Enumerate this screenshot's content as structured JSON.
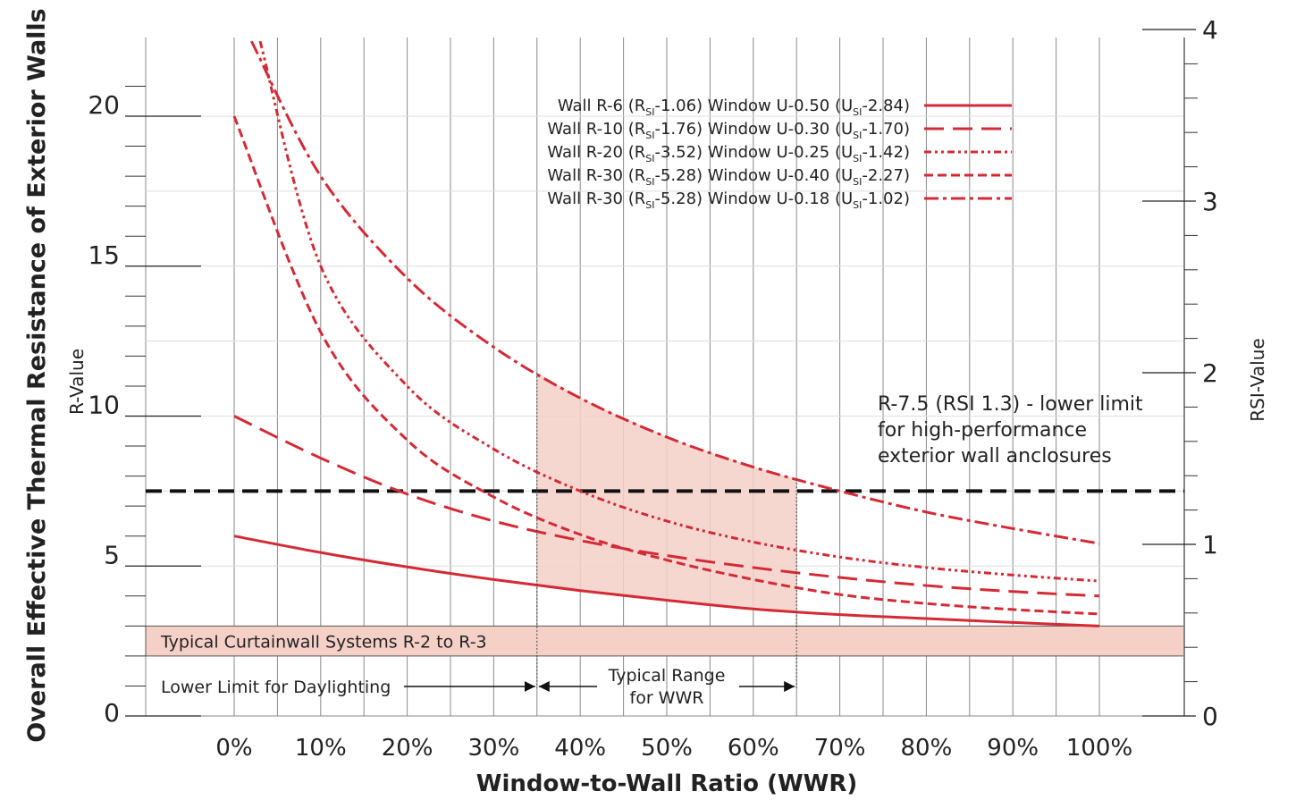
{
  "chart_data": {
    "type": "line",
    "title": "",
    "xlabel": "Window-to-Wall Ratio (WWR)",
    "ylabel": "Overall Effective Thermal Resistance of Exterior Walls",
    "ylabel_left_sub": "R-Value",
    "ylabel_right": "RSI-Value",
    "x_ticks": [
      "0%",
      "10%",
      "20%",
      "30%",
      "40%",
      "50%",
      "60%",
      "70%",
      "80%",
      "90%",
      "100%"
    ],
    "y_ticks": [
      "0",
      "5",
      "10",
      "15",
      "20"
    ],
    "y2_ticks": [
      "0",
      "1",
      "2",
      "3",
      "4"
    ],
    "xlim": [
      0,
      100
    ],
    "ylim": [
      0,
      22.7
    ],
    "y2lim": [
      0,
      4
    ],
    "grid": true,
    "legend_position": "top-center",
    "series": [
      {
        "name": "Wall R-6 (RSI-1.06) Window U-0.50 (USI-2.84)",
        "legend_parts": [
          "Wall R-6   (R",
          "SI",
          "-1.06) Window U-0.50 (U",
          "SI",
          "-2.84)"
        ],
        "style": "solid",
        "x": [
          0,
          10,
          20,
          30,
          40,
          50,
          60,
          70,
          80,
          90,
          100
        ],
        "y": [
          6.0,
          5.45,
          4.97,
          4.55,
          4.18,
          3.86,
          3.57,
          3.38,
          3.25,
          3.12,
          3.0
        ]
      },
      {
        "name": "Wall R-10 (RSI-1.76) Window U-0.30 (USI-1.70)",
        "legend_parts": [
          "Wall R-10 (R",
          "SI",
          "-1.76) Window U-0.30 (U",
          "SI",
          "-1.70)"
        ],
        "style": "long-dash",
        "x": [
          0,
          10,
          20,
          30,
          40,
          50,
          60,
          70,
          80,
          90,
          100
        ],
        "y": [
          10.0,
          8.6,
          7.4,
          6.5,
          5.85,
          5.35,
          4.95,
          4.62,
          4.35,
          4.15,
          4.0
        ]
      },
      {
        "name": "Wall R-20 (RSI-3.52) Window U-0.25 (USI-1.42)",
        "legend_parts": [
          "Wall R-20 (R",
          "SI",
          "-3.52) Window U-0.25 (U",
          "SI",
          "-1.42)"
        ],
        "style": "dash-dot-dot",
        "x": [
          3,
          10,
          20,
          30,
          40,
          50,
          60,
          70,
          80,
          90,
          100
        ],
        "y": [
          22.5,
          15.0,
          11.0,
          8.9,
          7.5,
          6.5,
          5.8,
          5.3,
          4.95,
          4.7,
          4.5
        ]
      },
      {
        "name": "Wall R-30 (RSI-5.28) Window U-0.40 (USI-2.27)",
        "legend_parts": [
          "Wall R-30 (R",
          "SI",
          "-5.28) Window U-0.40 (U",
          "SI",
          "-2.27)"
        ],
        "style": "short-dash",
        "x": [
          0,
          10,
          20,
          30,
          40,
          50,
          60,
          70,
          80,
          90,
          100
        ],
        "y": [
          20.0,
          12.8,
          9.2,
          7.3,
          6.05,
          5.2,
          4.55,
          4.05,
          3.75,
          3.55,
          3.4
        ]
      },
      {
        "name": "Wall R-30 (RSI-5.28) Window U-0.18 (USI-1.02)",
        "legend_parts": [
          "Wall R-30 (R",
          "SI",
          "-5.28) Window U-0.18 (U",
          "SI",
          "-1.02)"
        ],
        "style": "dash-dot",
        "x": [
          2,
          10,
          20,
          30,
          40,
          50,
          60,
          70,
          80,
          90,
          100
        ],
        "y": [
          22.5,
          18.0,
          14.6,
          12.3,
          10.6,
          9.3,
          8.3,
          7.5,
          6.8,
          6.25,
          5.75
        ]
      }
    ],
    "reference_line": {
      "y": 7.5,
      "style": "dashed",
      "color": "#111111",
      "label": [
        "R-7.5 (RSI 1.3) - lower limit",
        "for high-performance",
        "exterior wall anclosures"
      ]
    },
    "band": {
      "y_from": 2,
      "y_to": 3,
      "color": "#f5d0c7",
      "label": "Typical Curtainwall Systems R-2 to R-3"
    },
    "typical_range": {
      "x_from": 35,
      "x_to": 65,
      "color": "#f5d0c7",
      "label": [
        "Typical Range",
        "for WWR"
      ]
    },
    "daylight_label": "Lower Limit for Daylighting"
  },
  "colors": {
    "series": "#d42a36",
    "text": "#222222",
    "grid": "#888888",
    "band": "#f5d0c7"
  }
}
